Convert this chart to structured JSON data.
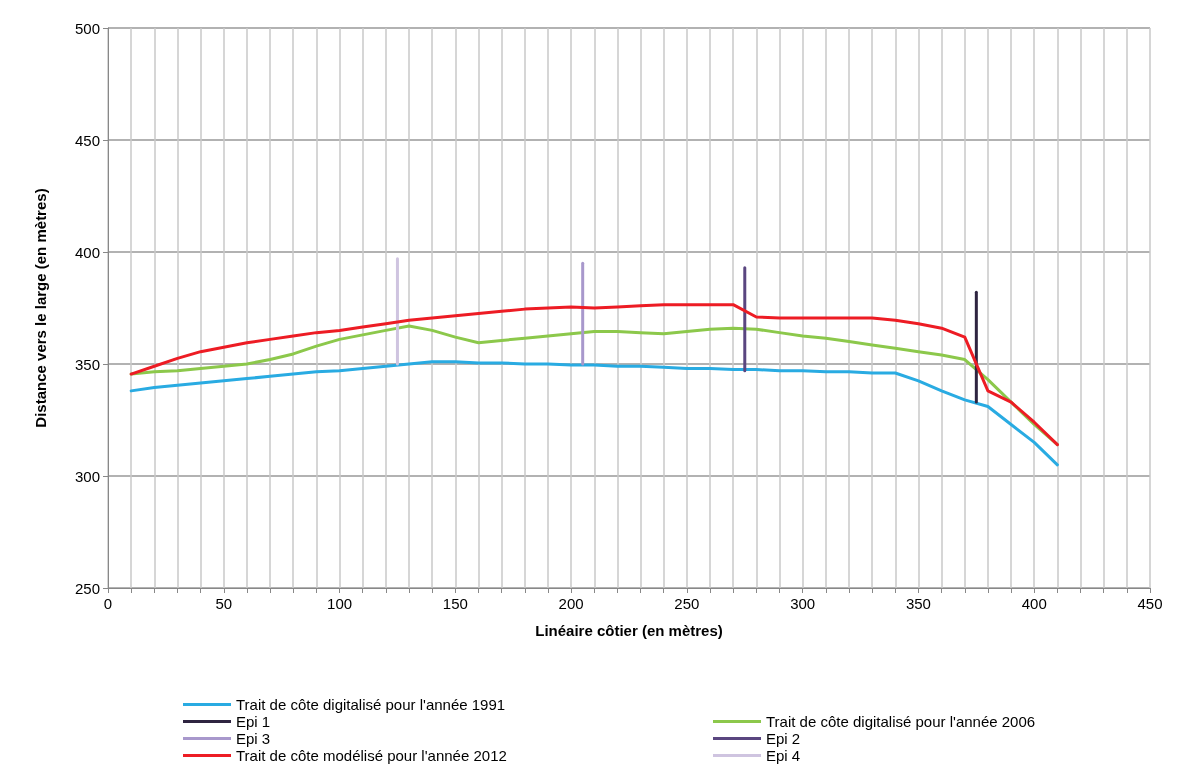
{
  "chart_data": {
    "type": "line",
    "xlabel": "Linéaire côtier (en mètres)",
    "ylabel": "Distance vers le large (en mètres)",
    "xlim": [
      0,
      450
    ],
    "ylim": [
      250,
      500
    ],
    "xticks": [
      0,
      {
        "value": 10,
        "label": null
      },
      {
        "value": 20,
        "label": null
      },
      {
        "value": 30,
        "label": null
      },
      {
        "value": 40,
        "label": null
      },
      50,
      {
        "value": 60,
        "label": null
      },
      {
        "value": 70,
        "label": null
      },
      {
        "value": 80,
        "label": null
      },
      {
        "value": 90,
        "label": null
      },
      100,
      {
        "value": 110,
        "label": null
      },
      {
        "value": 120,
        "label": null
      },
      {
        "value": 130,
        "label": null
      },
      {
        "value": 140,
        "label": null
      },
      150,
      {
        "value": 160,
        "label": null
      },
      {
        "value": 170,
        "label": null
      },
      {
        "value": 180,
        "label": null
      },
      {
        "value": 190,
        "label": null
      },
      200,
      {
        "value": 210,
        "label": null
      },
      {
        "value": 220,
        "label": null
      },
      {
        "value": 230,
        "label": null
      },
      {
        "value": 240,
        "label": null
      },
      250,
      {
        "value": 260,
        "label": null
      },
      {
        "value": 270,
        "label": null
      },
      {
        "value": 280,
        "label": null
      },
      {
        "value": 290,
        "label": null
      },
      300,
      {
        "value": 310,
        "label": null
      },
      {
        "value": 320,
        "label": null
      },
      {
        "value": 330,
        "label": null
      },
      {
        "value": 340,
        "label": null
      },
      350,
      {
        "value": 360,
        "label": null
      },
      {
        "value": 370,
        "label": null
      },
      {
        "value": 380,
        "label": null
      },
      {
        "value": 390,
        "label": null
      },
      400,
      {
        "value": 410,
        "label": null
      },
      {
        "value": 420,
        "label": null
      },
      {
        "value": 430,
        "label": null
      },
      {
        "value": 440,
        "label": null
      },
      450
    ],
    "yticks": [
      250,
      300,
      350,
      400,
      450,
      500
    ],
    "grid": true,
    "legend": "bottom",
    "marker": "none",
    "line_style": "solid",
    "x": [
      10,
      20,
      30,
      40,
      50,
      60,
      70,
      80,
      90,
      100,
      110,
      120,
      130,
      140,
      150,
      160,
      170,
      180,
      190,
      200,
      210,
      220,
      230,
      240,
      250,
      260,
      270,
      280,
      290,
      300,
      310,
      320,
      330,
      340,
      350,
      360,
      370,
      380,
      390,
      400,
      410
    ],
    "series": [
      {
        "name": "Trait de côte digitalisé pour l'année 1991",
        "color": "#29abe2",
        "values": [
          338,
          339.5,
          340.5,
          341.5,
          342.5,
          343.5,
          344.5,
          345.5,
          346.5,
          347,
          348,
          349,
          350,
          351,
          351,
          350.5,
          350.5,
          350,
          350,
          349.5,
          349.5,
          349,
          349,
          348.5,
          348,
          348,
          347.5,
          347.5,
          347,
          347,
          346.5,
          346.5,
          346,
          346,
          342.5,
          338,
          334,
          331,
          323,
          315,
          305
        ]
      },
      {
        "name": "Trait de côte digitalisé pour l'année 2006",
        "color": "#8cc84b",
        "values": [
          345.5,
          346.5,
          347,
          348,
          349,
          350,
          352,
          354.5,
          358,
          361,
          363,
          365,
          367,
          365,
          362,
          359.5,
          360.5,
          361.5,
          362.5,
          363.5,
          364.5,
          364.5,
          364,
          363.5,
          364.5,
          365.5,
          366,
          365.5,
          364,
          362.5,
          361.5,
          360,
          358.5,
          357,
          355.5,
          354,
          352,
          343,
          333,
          323,
          314
        ]
      },
      {
        "name": "Epi 1",
        "color": "#2e2440",
        "x": [
          375,
          375
        ],
        "values": [
          333,
          382
        ]
      },
      {
        "name": "Epi 2",
        "color": "#5a4680",
        "x": [
          275,
          275
        ],
        "values": [
          347,
          393
        ]
      },
      {
        "name": "Epi 3",
        "color": "#a898cc",
        "x": [
          205,
          205
        ],
        "values": [
          350,
          395
        ]
      },
      {
        "name": "Epi 4",
        "color": "#cfc4e0",
        "x": [
          125,
          125
        ],
        "values": [
          350,
          397
        ]
      },
      {
        "name": "Trait de côte modélisé pour l'année 2012",
        "color": "#ed1c24",
        "values": [
          345.5,
          349,
          352.5,
          355.5,
          357.5,
          359.5,
          361,
          362.5,
          364,
          365,
          366.5,
          368,
          369.5,
          370.5,
          371.5,
          372.5,
          373.5,
          374.5,
          375,
          375.5,
          375,
          375.5,
          376,
          376.5,
          376.5,
          376.5,
          376.5,
          371,
          370.5,
          370.5,
          370.5,
          370.5,
          370.5,
          369.5,
          368,
          366,
          362,
          338,
          333,
          324,
          314
        ]
      }
    ]
  }
}
